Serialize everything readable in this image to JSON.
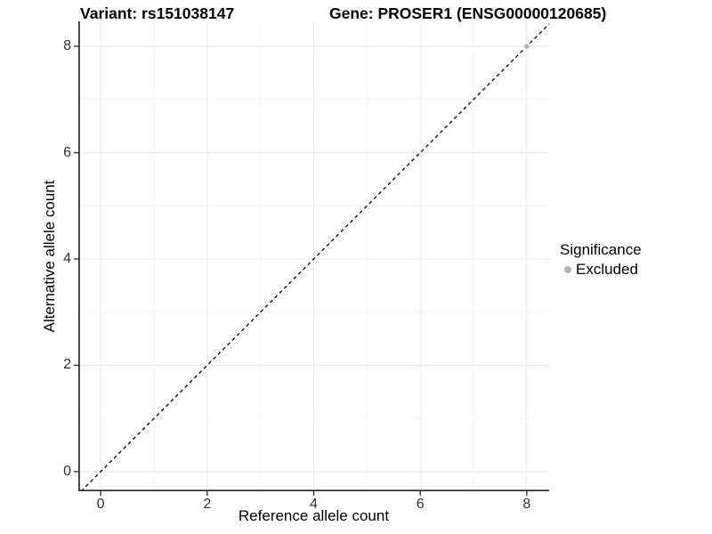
{
  "chart_data": {
    "type": "scatter",
    "title_left": "Variant: rs151038147",
    "title_right": "Gene: PROSER1 (ENSG00000120685)",
    "xlabel": "Reference allele count",
    "ylabel": "Alternative allele count",
    "xlim": [
      -0.42,
      8.42
    ],
    "ylim": [
      -0.37,
      8.47
    ],
    "x_ticks": [
      0,
      2,
      4,
      6,
      8
    ],
    "y_ticks": [
      0,
      2,
      4,
      6,
      8
    ],
    "x_minor_ticks": [
      1,
      3,
      5,
      7
    ],
    "y_minor_ticks": [
      1,
      3,
      5,
      7
    ],
    "grid": "on",
    "points": [
      {
        "x": 8,
        "y": 8,
        "significance": "Excluded"
      }
    ],
    "identity_line": {
      "slope": 1,
      "intercept": 0,
      "style": "dashed"
    },
    "legend": {
      "position": "right",
      "title": "Significance",
      "entries": [
        {
          "label": "Excluded",
          "color": "#b3b3b3"
        }
      ]
    },
    "colors": {
      "background": "#ffffff",
      "grid_major": "#e7e7e7",
      "grid_minor": "#f2f2f2",
      "axis_line": "#333333",
      "tick_mark": "#333333",
      "dashed_line": "#000000",
      "point": "#b3b3b3",
      "text": "#000000"
    }
  }
}
